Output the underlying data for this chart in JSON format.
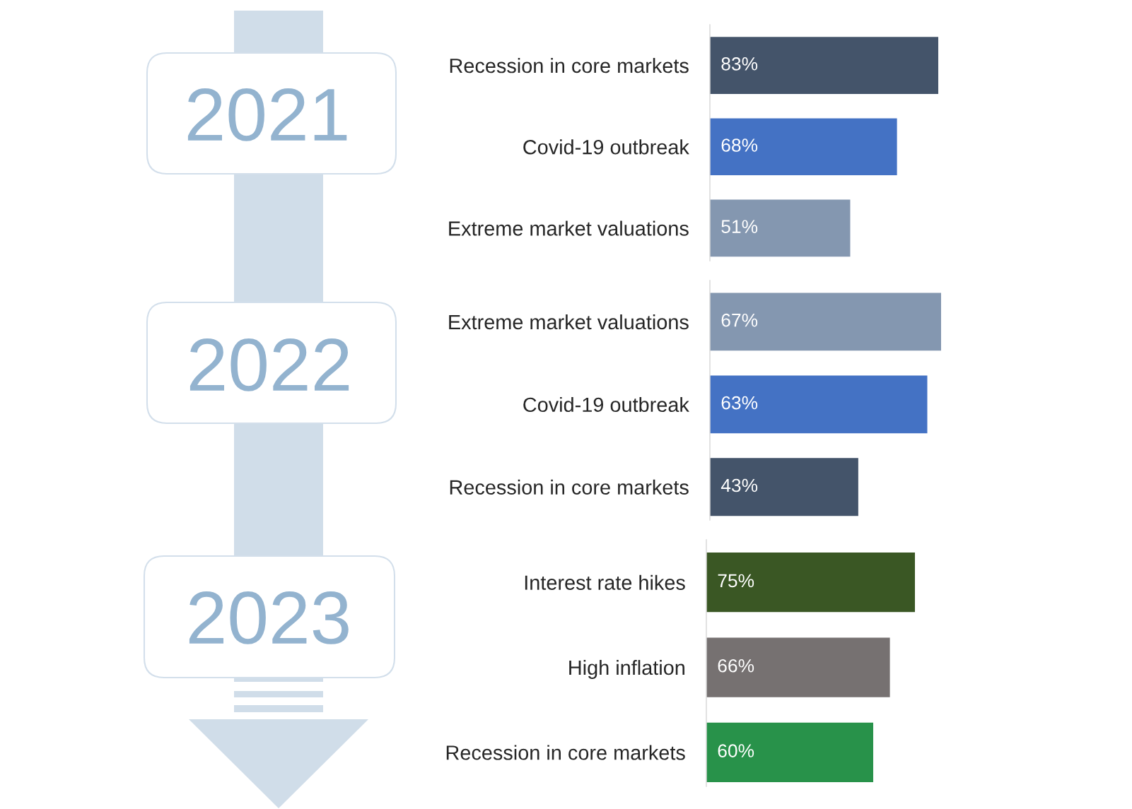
{
  "chart_data": [
    {
      "type": "bar",
      "orientation": "horizontal",
      "title": "2021",
      "categories": [
        "Recession in core markets",
        "Covid-19 outbreak",
        "Extreme market valuations"
      ],
      "values": [
        83,
        68,
        51
      ],
      "colors": [
        "#44546a",
        "#4472c4",
        "#8497b0"
      ],
      "value_labels": [
        "83%",
        "68%",
        "51%"
      ],
      "tick_labels": "y"
    },
    {
      "type": "bar",
      "orientation": "horizontal",
      "title": "2022",
      "categories": [
        "Extreme market valuations",
        "Covid-19 outbreak",
        "Recession in core markets"
      ],
      "values": [
        67,
        63,
        43
      ],
      "colors": [
        "#8497b0",
        "#4472c4",
        "#44546a"
      ],
      "value_labels": [
        "67%",
        "63%",
        "43%"
      ],
      "tick_labels": "y"
    },
    {
      "type": "bar",
      "orientation": "horizontal",
      "title": "2023",
      "categories": [
        "Interest rate hikes",
        "High inflation",
        "Recession in core markets"
      ],
      "values": [
        75,
        66,
        60
      ],
      "colors": [
        "#3a5724",
        "#767171",
        "#28924a"
      ],
      "value_labels": [
        "75%",
        "66%",
        "60%"
      ],
      "tick_labels": "y"
    }
  ]
}
